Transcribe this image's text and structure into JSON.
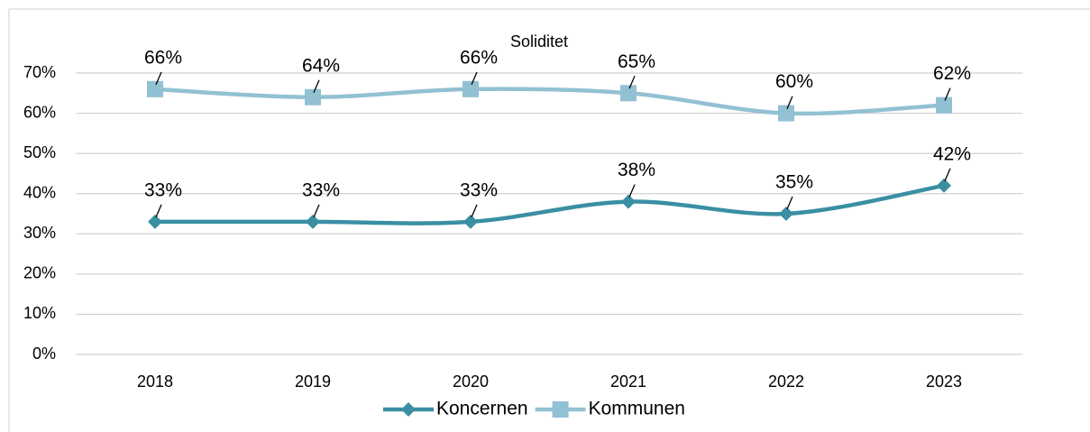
{
  "chart_data": {
    "type": "line",
    "title": "Soliditet",
    "categories": [
      "2018",
      "2019",
      "2020",
      "2021",
      "2022",
      "2023"
    ],
    "series": [
      {
        "name": "Koncernen",
        "color": "#3a8fa3",
        "marker": "diamond",
        "values": [
          33,
          33,
          33,
          38,
          35,
          42
        ],
        "value_labels": [
          "33%",
          "33%",
          "33%",
          "38%",
          "35%",
          "42%"
        ]
      },
      {
        "name": "Kommunen",
        "color": "#92c1d3",
        "marker": "square",
        "values": [
          66,
          64,
          66,
          65,
          60,
          62
        ],
        "value_labels": [
          "66%",
          "64%",
          "66%",
          "65%",
          "60%",
          "62%"
        ]
      }
    ],
    "ylim": [
      0,
      70
    ],
    "yticks": [
      {
        "value": 0,
        "label": "0%"
      },
      {
        "value": 10,
        "label": "10%"
      },
      {
        "value": 20,
        "label": "20%"
      },
      {
        "value": 30,
        "label": "30%"
      },
      {
        "value": 40,
        "label": "40%"
      },
      {
        "value": 50,
        "label": "50%"
      },
      {
        "value": 60,
        "label": "60%"
      },
      {
        "value": 70,
        "label": "70%"
      }
    ],
    "grid": true,
    "smooth": true,
    "legend": "bottom"
  }
}
